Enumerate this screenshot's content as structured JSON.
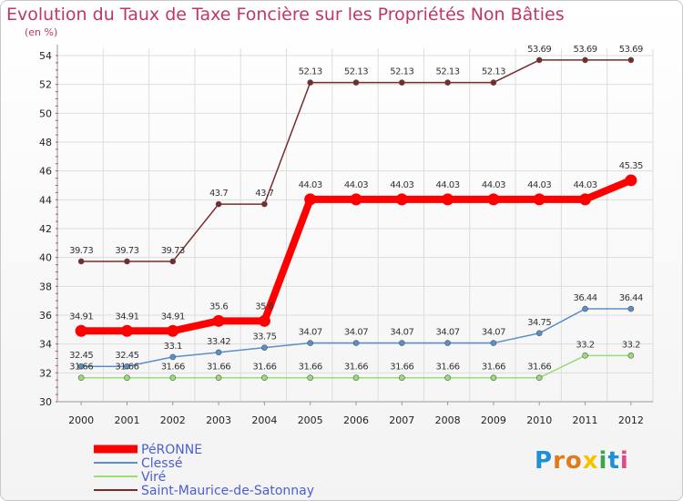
{
  "chart_data": {
    "type": "line",
    "title": "Evolution du Taux de Taxe Foncière sur les Propriétés Non Bâties",
    "ylabel": "(en %)",
    "xlabel": "",
    "ylim": [
      30,
      54
    ],
    "yticks": [
      "30",
      "32",
      "34",
      "36",
      "38",
      "40",
      "42",
      "44",
      "46",
      "48",
      "50",
      "52",
      "54"
    ],
    "categories": [
      "2000",
      "2001",
      "2002",
      "2003",
      "2004",
      "2005",
      "2006",
      "2007",
      "2008",
      "2009",
      "2010",
      "2011",
      "2012"
    ],
    "series": [
      {
        "name": "PéRONNE",
        "color": "#ff0000",
        "width": 8,
        "values": [
          34.91,
          34.91,
          34.91,
          35.6,
          35.6,
          44.03,
          44.03,
          44.03,
          44.03,
          44.03,
          44.03,
          44.03,
          45.35
        ],
        "labels": [
          "34.91",
          "34.91",
          "34.91",
          "35.6",
          "35.6",
          "44.03",
          "44.03",
          "44.03",
          "44.03",
          "44.03",
          "44.03",
          "44.03",
          "45.35"
        ]
      },
      {
        "name": "Clessé",
        "color": "#5b8fc9",
        "width": 1.5,
        "values": [
          32.45,
          32.45,
          33.1,
          33.42,
          33.75,
          34.07,
          34.07,
          34.07,
          34.07,
          34.07,
          34.75,
          36.44,
          36.44
        ],
        "labels": [
          "32.45",
          "32.45",
          "33.1",
          "33.42",
          "33.75",
          "34.07",
          "34.07",
          "34.07",
          "34.07",
          "34.07",
          "34.75",
          "36.44",
          "36.44"
        ]
      },
      {
        "name": "Viré",
        "color": "#99dd77",
        "width": 1.5,
        "values": [
          31.66,
          31.66,
          31.66,
          31.66,
          31.66,
          31.66,
          31.66,
          31.66,
          31.66,
          31.66,
          31.66,
          33.2,
          33.2
        ],
        "labels": [
          "31.66",
          "31.66",
          "31.66",
          "31.66",
          "31.66",
          "31.66",
          "31.66",
          "31.66",
          "31.66",
          "31.66",
          "31.66",
          "33.2",
          "33.2"
        ]
      },
      {
        "name": "Saint-Maurice-de-Satonnay",
        "color": "#7a2a2a",
        "width": 1.5,
        "values": [
          39.73,
          39.73,
          39.73,
          43.7,
          43.7,
          52.13,
          52.13,
          52.13,
          52.13,
          52.13,
          53.69,
          53.69,
          53.69
        ],
        "labels": [
          "39.73",
          "39.73",
          "39.73",
          "43.7",
          "43.7",
          "52.13",
          "52.13",
          "52.13",
          "52.13",
          "52.13",
          "53.69",
          "53.69",
          "53.69"
        ]
      }
    ],
    "legend_position": "bottom-left"
  },
  "logo": {
    "text": "Proxiti",
    "letters": [
      "P",
      "r",
      "o",
      "x",
      "i",
      "t",
      "i"
    ],
    "colors": [
      "#1f8fd6",
      "#e07b1c",
      "#e07b1c",
      "#f5c400",
      "#3aa84a",
      "#1f8fd6",
      "#e04a8a"
    ]
  }
}
